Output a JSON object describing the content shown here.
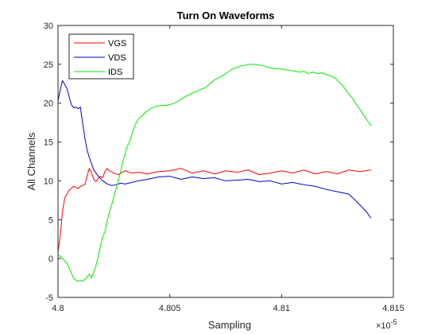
{
  "chart_data": {
    "type": "line",
    "title": "Turn On Waveforms",
    "xlabel": "Sampling",
    "ylabel": "All Channels",
    "x_exponent_label": "×10",
    "x_exponent_power": "-5",
    "xlim": [
      4.8,
      4.815
    ],
    "ylim": [
      -5,
      30
    ],
    "x_ticks": [
      4.8,
      4.805,
      4.81,
      4.815
    ],
    "x_tick_labels": [
      "4.8",
      "4.805",
      "4.81",
      "4.815"
    ],
    "y_ticks": [
      -5,
      0,
      5,
      10,
      15,
      20,
      25,
      30
    ],
    "y_tick_labels": [
      "-5",
      "0",
      "5",
      "10",
      "15",
      "20",
      "25",
      "30"
    ],
    "grid": false,
    "legend_position": "top-left",
    "series": [
      {
        "name": "VGS",
        "color": "#ff0000",
        "x": [
          4.8,
          4.8001,
          4.8002,
          4.8003,
          4.8005,
          4.8007,
          4.8009,
          4.801,
          4.8012,
          4.8013,
          4.8014,
          4.8015,
          4.8016,
          4.8017,
          4.8018,
          4.8019,
          4.802,
          4.8021,
          4.8022,
          4.8023,
          4.8025,
          4.8027,
          4.803,
          4.8033,
          4.8036,
          4.804,
          4.8045,
          4.805,
          4.8055,
          4.806,
          4.8065,
          4.807,
          4.8075,
          4.808,
          4.8085,
          4.809,
          4.8095,
          4.81,
          4.8105,
          4.811,
          4.8115,
          4.812,
          4.8125,
          4.813,
          4.8135,
          4.814
        ],
        "y": [
          0.8,
          3.0,
          6.0,
          7.8,
          8.8,
          9.3,
          9.0,
          9.3,
          9.5,
          10.6,
          11.6,
          11.0,
          10.2,
          9.9,
          10.3,
          10.6,
          10.4,
          11.2,
          11.6,
          11.3,
          11.0,
          10.8,
          11.3,
          11.0,
          11.1,
          10.9,
          11.2,
          11.3,
          11.6,
          11.0,
          11.3,
          10.9,
          11.3,
          11.1,
          11.4,
          10.8,
          11.0,
          11.3,
          11.0,
          11.4,
          10.9,
          11.2,
          10.9,
          11.4,
          11.2,
          11.4
        ]
      },
      {
        "name": "VDS",
        "color": "#0000d0",
        "x": [
          4.8,
          4.8001,
          4.8002,
          4.8003,
          4.8004,
          4.8005,
          4.8006,
          4.8007,
          4.8008,
          4.8009,
          4.801,
          4.8011,
          4.8012,
          4.8013,
          4.8014,
          4.8015,
          4.8016,
          4.8017,
          4.8018,
          4.8019,
          4.802,
          4.8022,
          4.8024,
          4.8026,
          4.8028,
          4.803,
          4.8033,
          4.8036,
          4.804,
          4.8045,
          4.805,
          4.8055,
          4.806,
          4.8065,
          4.807,
          4.8075,
          4.808,
          4.8085,
          4.809,
          4.8095,
          4.81,
          4.8105,
          4.811,
          4.8115,
          4.812,
          4.8125,
          4.813,
          4.8133,
          4.8136,
          4.8138,
          4.814
        ],
        "y": [
          20.3,
          21.7,
          22.9,
          22.4,
          21.9,
          20.8,
          19.8,
          19.4,
          19.5,
          19.3,
          19.5,
          17.5,
          15.5,
          14.0,
          13.0,
          12.2,
          11.4,
          11.0,
          10.6,
          10.3,
          10.0,
          9.6,
          9.4,
          9.5,
          9.7,
          9.6,
          9.8,
          10.0,
          10.2,
          10.5,
          10.6,
          10.2,
          10.5,
          10.3,
          10.4,
          10.0,
          10.1,
          10.2,
          9.9,
          10.0,
          9.6,
          9.8,
          9.5,
          9.3,
          8.9,
          8.6,
          8.3,
          7.5,
          6.6,
          6.0,
          5.2
        ]
      },
      {
        "name": "IDS",
        "color": "#00ee00",
        "x": [
          4.8,
          4.8001,
          4.8002,
          4.8003,
          4.8004,
          4.8005,
          4.8006,
          4.8007,
          4.8008,
          4.8009,
          4.801,
          4.8011,
          4.8012,
          4.8013,
          4.8014,
          4.8015,
          4.8016,
          4.8017,
          4.8018,
          4.8019,
          4.802,
          4.8021,
          4.8022,
          4.8023,
          4.8024,
          4.8025,
          4.8026,
          4.8027,
          4.8028,
          4.8029,
          4.803,
          4.8031,
          4.8032,
          4.8033,
          4.8034,
          4.8035,
          4.8036,
          4.8037,
          4.8038,
          4.8039,
          4.804,
          4.8042,
          4.8044,
          4.8046,
          4.8048,
          4.805,
          4.8052,
          4.8054,
          4.8056,
          4.8058,
          4.806,
          4.8062,
          4.8064,
          4.8066,
          4.8068,
          4.807,
          4.8072,
          4.8074,
          4.8076,
          4.8078,
          4.808,
          4.8082,
          4.8084,
          4.8086,
          4.8088,
          4.809,
          4.8092,
          4.8094,
          4.8096,
          4.8098,
          4.81,
          4.8102,
          4.8104,
          4.8106,
          4.8108,
          4.811,
          4.8112,
          4.8114,
          4.8116,
          4.8118,
          4.812,
          4.8122,
          4.8124,
          4.8126,
          4.8128,
          4.813,
          4.8132,
          4.8134,
          4.8136,
          4.8138,
          4.814
        ],
        "y": [
          0.4,
          0.3,
          0.0,
          -0.3,
          -0.6,
          -1.2,
          -1.9,
          -2.5,
          -2.8,
          -2.9,
          -2.8,
          -2.9,
          -2.7,
          -2.4,
          -2.0,
          -2.5,
          -1.8,
          -0.9,
          0.3,
          1.6,
          2.8,
          3.5,
          4.8,
          6.0,
          6.9,
          8.0,
          9.0,
          10.0,
          11.2,
          12.5,
          13.5,
          14.5,
          15.0,
          16.0,
          16.8,
          17.5,
          18.0,
          18.2,
          18.5,
          18.8,
          19.0,
          19.4,
          19.6,
          19.7,
          19.7,
          19.8,
          20.0,
          20.3,
          20.7,
          21.0,
          21.3,
          21.5,
          21.8,
          22.0,
          22.5,
          23.0,
          23.3,
          23.6,
          24.0,
          24.4,
          24.6,
          24.8,
          24.9,
          25.0,
          25.0,
          24.9,
          24.8,
          24.6,
          24.5,
          24.4,
          24.4,
          24.3,
          24.2,
          24.1,
          24.0,
          24.1,
          23.8,
          24.0,
          23.8,
          23.9,
          23.7,
          23.5,
          23.2,
          22.6,
          22.0,
          21.2,
          20.5,
          19.6,
          18.8,
          17.9,
          17.1
        ]
      }
    ]
  }
}
